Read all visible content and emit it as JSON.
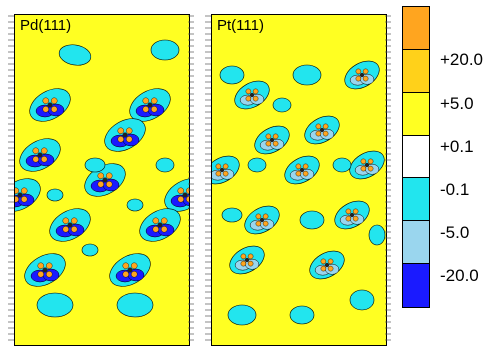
{
  "panels": [
    {
      "label": "Pd(111)"
    },
    {
      "label": "Pt(111)"
    }
  ],
  "colorbar": {
    "levels": [
      "+20.0",
      "+5.0",
      "+0.1",
      "-0.1",
      "-5.0",
      "-20.0"
    ],
    "colors": [
      "#ffa51f",
      "#ffd11a",
      "#ffff22",
      "#ffffff",
      "#22e5ee",
      "#9ad6ee",
      "#1a1aff"
    ]
  },
  "colors": {
    "background_contour": "#ffff22",
    "negative": "#22e5ee",
    "negative_strong": "#1a1aff",
    "positive": "#ffa51f"
  }
}
